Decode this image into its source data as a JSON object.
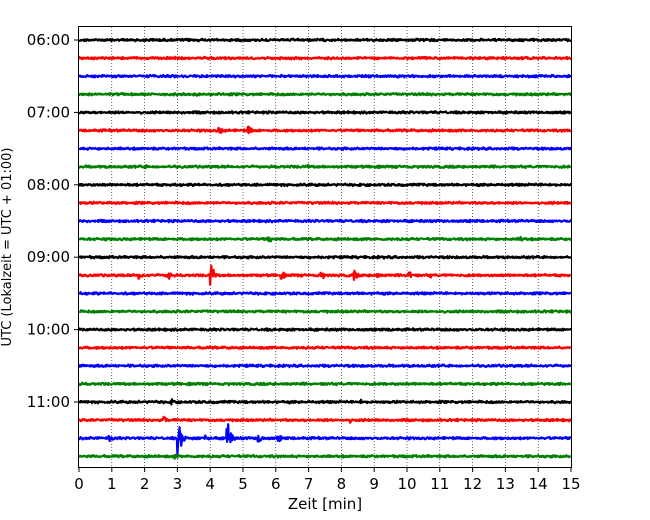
{
  "chart_data": {
    "type": "line",
    "xlabel": "Zeit  [min]",
    "ylabel": "UTC (Lokalzeit = UTC + 01:00)",
    "xlim": [
      0,
      15
    ],
    "x_ticks": [
      "0",
      "1",
      "2",
      "3",
      "4",
      "5",
      "6",
      "7",
      "8",
      "9",
      "10",
      "11",
      "12",
      "13",
      "14",
      "15"
    ],
    "grid": "vertical dotted",
    "y_ticks": [
      {
        "label": "06:00",
        "trace": 0
      },
      {
        "label": "07:00",
        "trace": 4
      },
      {
        "label": "08:00",
        "trace": 8
      },
      {
        "label": "09:00",
        "trace": 12
      },
      {
        "label": "10:00",
        "trace": 16
      },
      {
        "label": "11:00",
        "trace": 20
      }
    ],
    "trace_interval_min": 15,
    "trace_colors": [
      "#000000",
      "#ff0000",
      "#0000ff",
      "#008000"
    ],
    "events": [
      {
        "trace": 5,
        "t": 4.3,
        "amp": 0.5
      },
      {
        "trace": 5,
        "t": 5.2,
        "amp": 0.45
      },
      {
        "trace": 7,
        "t": 2.0,
        "amp": 0.25
      },
      {
        "trace": 7,
        "t": 7.0,
        "amp": 0.2
      },
      {
        "trace": 11,
        "t": 5.8,
        "amp": 0.55
      },
      {
        "trace": 11,
        "t": 13.5,
        "amp": 0.3
      },
      {
        "trace": 13,
        "t": 1.85,
        "amp": 0.5
      },
      {
        "trace": 13,
        "t": 2.75,
        "amp": 0.45
      },
      {
        "trace": 13,
        "t": 4.05,
        "amp": 1.2
      },
      {
        "trace": 13,
        "t": 4.1,
        "amp": 0.6
      },
      {
        "trace": 13,
        "t": 6.2,
        "amp": 0.45
      },
      {
        "trace": 13,
        "t": 7.4,
        "amp": 0.5
      },
      {
        "trace": 13,
        "t": 8.4,
        "amp": 0.6
      },
      {
        "trace": 13,
        "t": 9.1,
        "amp": 0.35
      },
      {
        "trace": 13,
        "t": 10.1,
        "amp": 0.4
      },
      {
        "trace": 13,
        "t": 10.7,
        "amp": 0.3
      },
      {
        "trace": 16,
        "t": 9.5,
        "amp": 0.3
      },
      {
        "trace": 20,
        "t": 2.85,
        "amp": 0.35
      },
      {
        "trace": 20,
        "t": 8.6,
        "amp": 0.25
      },
      {
        "trace": 21,
        "t": 2.6,
        "amp": 0.45
      },
      {
        "trace": 21,
        "t": 8.3,
        "amp": 0.25
      },
      {
        "trace": 22,
        "t": 0.95,
        "amp": 0.4
      },
      {
        "trace": 22,
        "t": 3.05,
        "amp": 2.2
      },
      {
        "trace": 22,
        "t": 3.9,
        "amp": 0.5
      },
      {
        "trace": 22,
        "t": 4.55,
        "amp": 1.8
      },
      {
        "trace": 22,
        "t": 5.5,
        "amp": 0.5
      },
      {
        "trace": 22,
        "t": 6.1,
        "amp": 0.4
      },
      {
        "trace": 23,
        "t": 2.95,
        "amp": 0.3
      }
    ]
  }
}
